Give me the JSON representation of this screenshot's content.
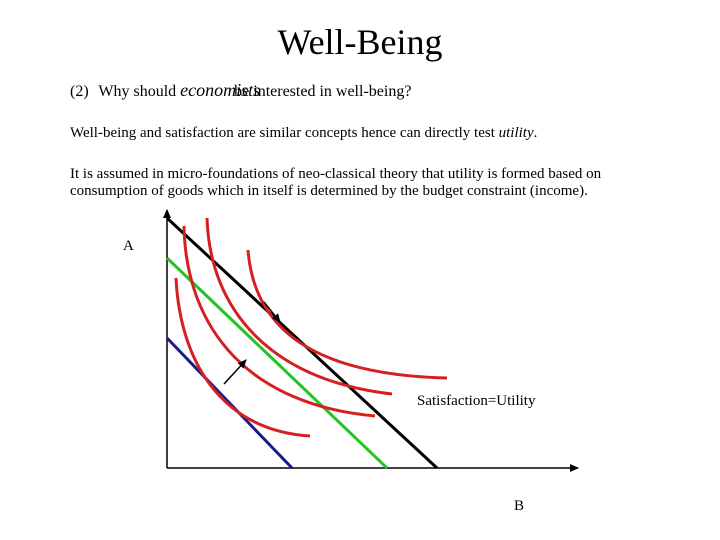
{
  "slide": {
    "title": "Well-Being",
    "question": {
      "number": "(2)",
      "prefix": "Why should",
      "italic_word": "economists",
      "suffix": "be interested in well-being?"
    },
    "paragraph1": {
      "text": "Well-being and satisfaction are similar concepts hence can directly test ",
      "italic": "utility",
      "end": "."
    },
    "paragraph2": "It is assumed in micro-foundations of neo-classical theory that utility is formed based on consumption of goods which in itself is determined by the budget constraint (income)."
  },
  "chart_data": {
    "type": "diagram",
    "y_axis_label": "A",
    "x_axis_label": "B",
    "annotation": "Satisfaction=Utility",
    "budget_lines": [
      {
        "name": "budget-line-low",
        "color": "#1a1a8c"
      },
      {
        "name": "budget-line-mid",
        "color": "#22c422"
      },
      {
        "name": "budget-line-high",
        "color": "#000000"
      }
    ],
    "indifference_curves": 4,
    "curve_color": "#d42020"
  }
}
